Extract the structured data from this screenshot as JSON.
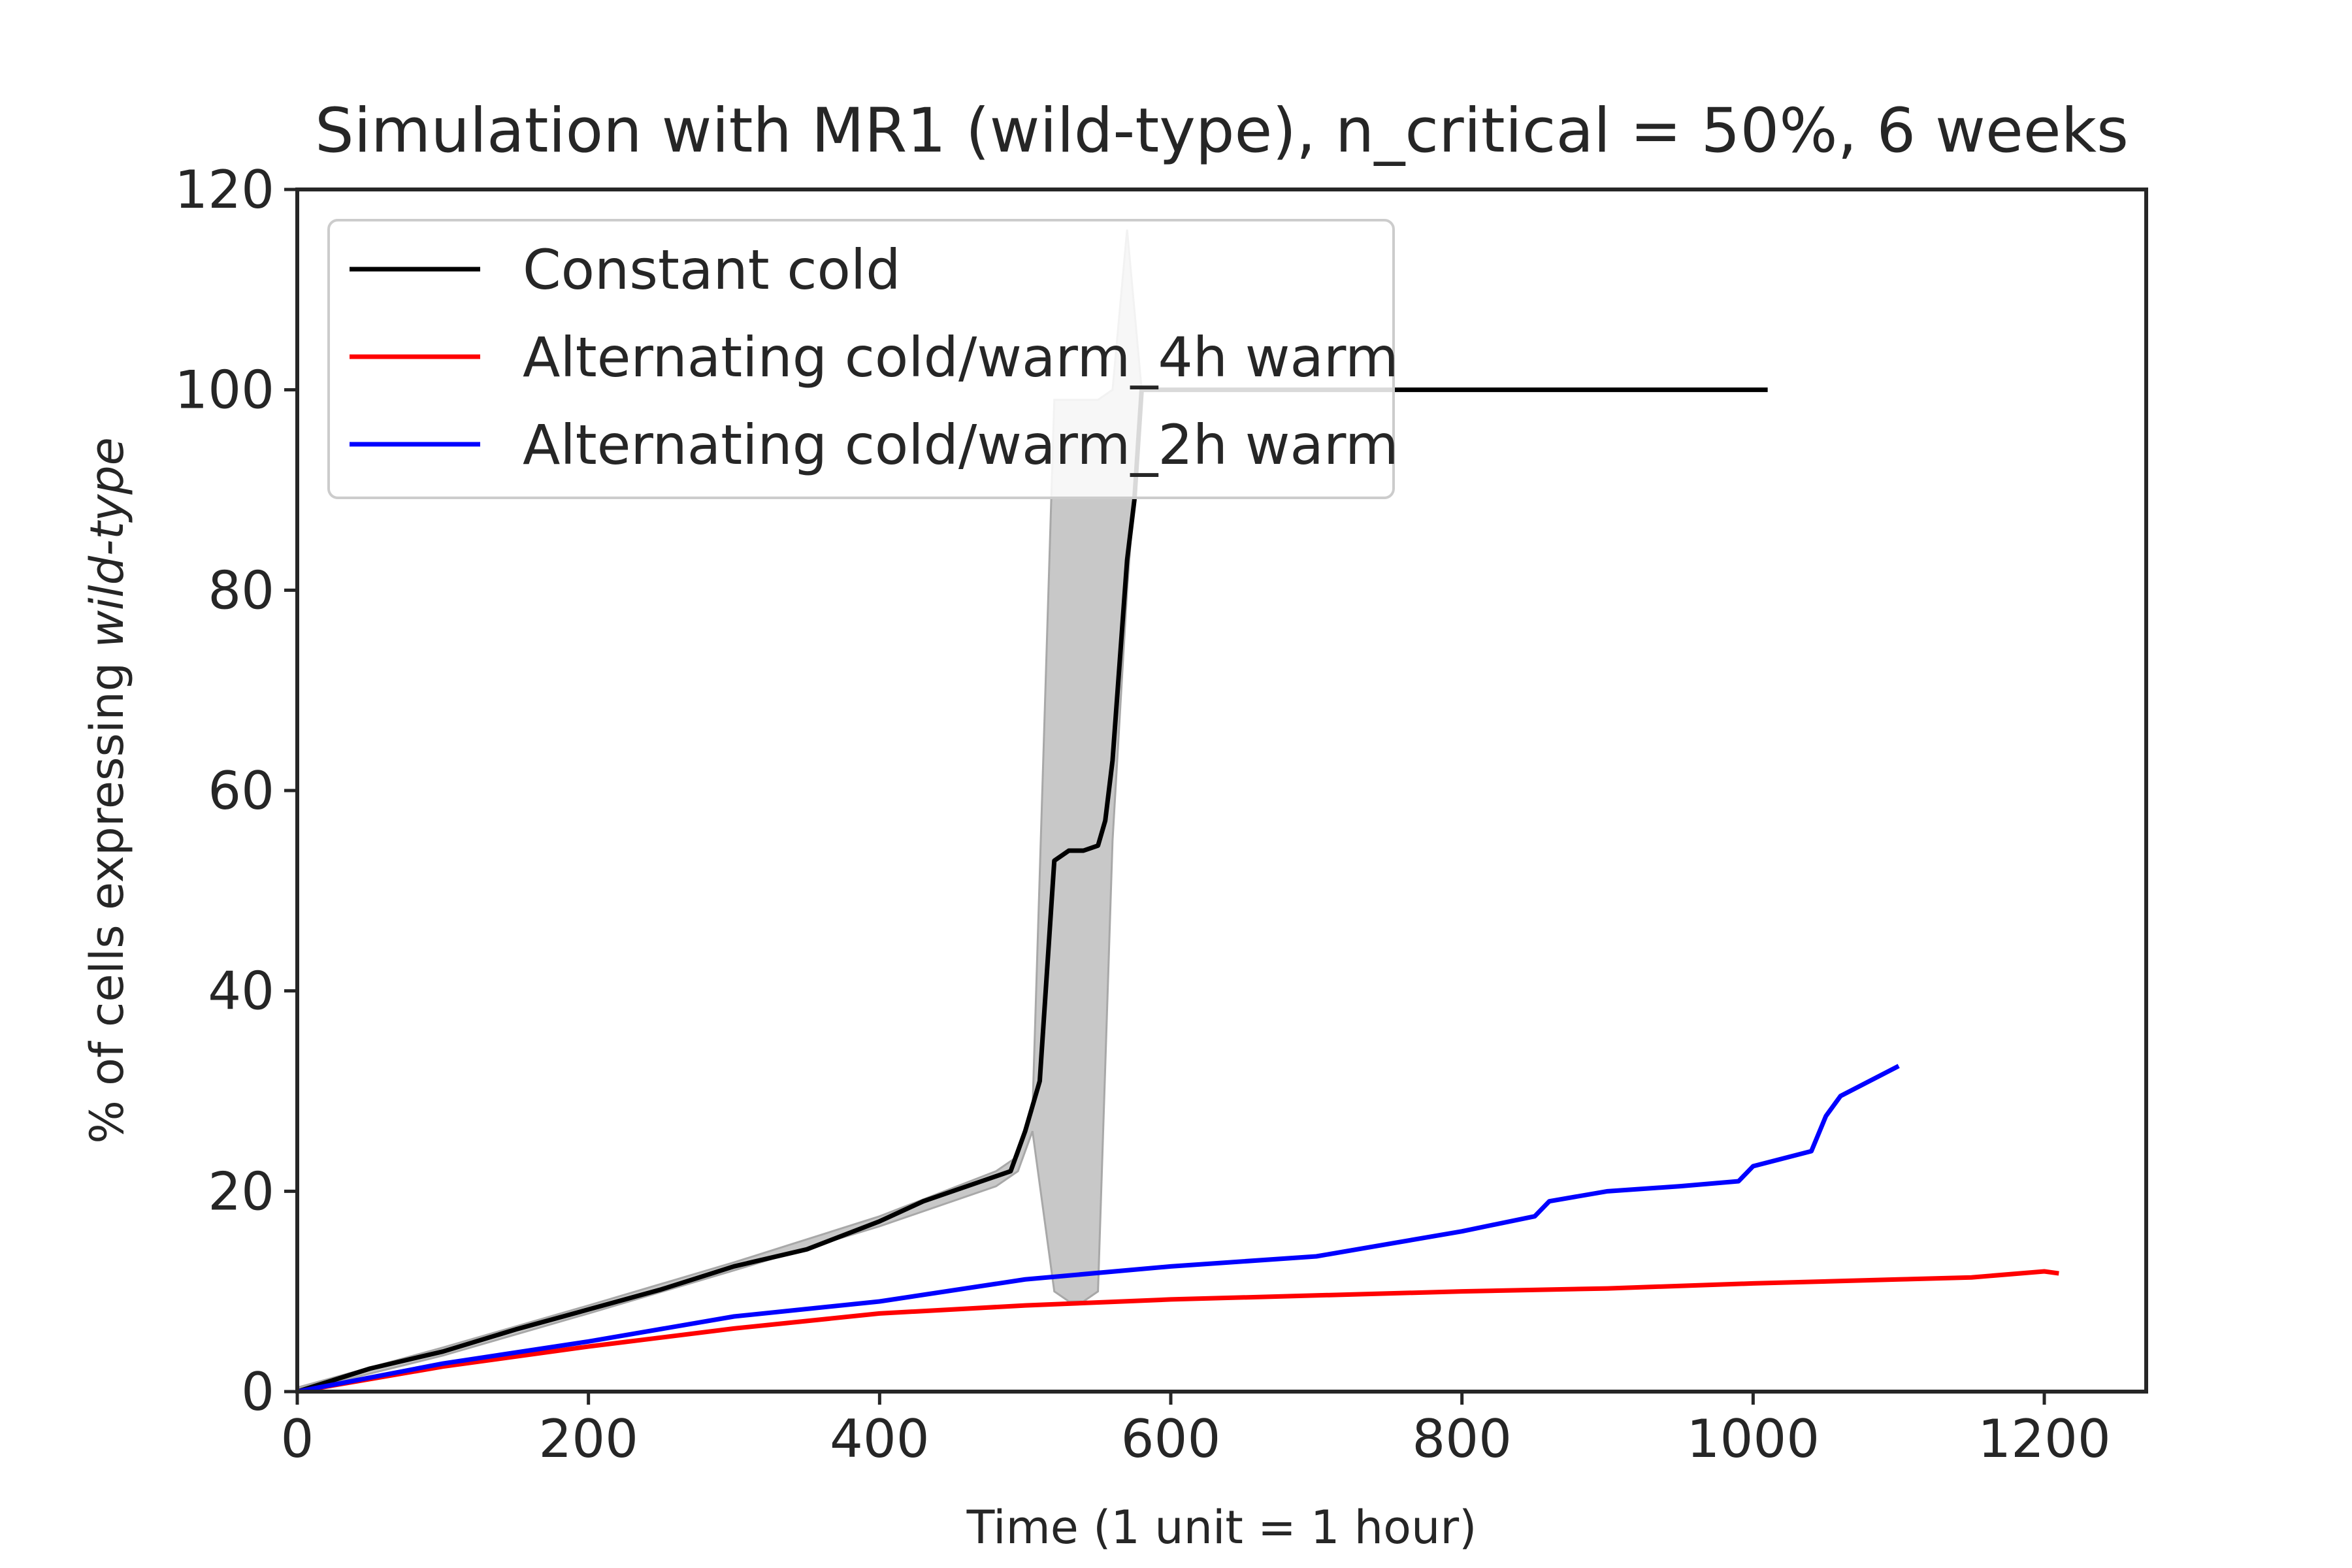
{
  "chart_data": {
    "type": "line",
    "title": "Simulation with MR1 (wild-type), n_critical = 50%, 6 weeks",
    "xlabel": "Time (1 unit = 1 hour)",
    "ylabel_prefix": "% of cells expressing ",
    "ylabel_italic": "wild-type",
    "xlim": [
      0,
      1270
    ],
    "ylim": [
      0,
      120
    ],
    "xticks": [
      0,
      200,
      400,
      600,
      800,
      1000,
      1200
    ],
    "yticks": [
      0,
      20,
      40,
      60,
      80,
      100,
      120
    ],
    "grid": false,
    "legend_position": "upper-left",
    "series": [
      {
        "name": "Constant cold",
        "color": "#000000",
        "x": [
          0,
          50,
          100,
          150,
          200,
          250,
          300,
          350,
          400,
          430,
          470,
          490,
          500,
          510,
          520,
          530,
          540,
          550,
          555,
          560,
          565,
          570,
          575,
          580,
          600,
          700,
          800,
          900,
          1010
        ],
        "y": [
          0,
          2.3,
          4,
          6.2,
          8.2,
          10.2,
          12.5,
          14.2,
          17,
          19,
          21,
          22,
          26,
          31,
          53,
          54,
          54,
          54.5,
          57,
          63,
          73,
          83,
          89,
          100,
          100,
          100,
          100,
          100,
          100
        ],
        "band_x": [
          0,
          100,
          200,
          300,
          400,
          480,
          495,
          505,
          520,
          530,
          540,
          550,
          560,
          570,
          580,
          600
        ],
        "band_lower": [
          0,
          3.6,
          7.8,
          12.1,
          16.5,
          20.5,
          22,
          26,
          10,
          9,
          9,
          10,
          55,
          80,
          100,
          100
        ],
        "band_upper": [
          0.4,
          4.4,
          8.6,
          12.9,
          17.5,
          22,
          23.5,
          28,
          99,
          99,
          99,
          99,
          100,
          116,
          100,
          100
        ]
      },
      {
        "name": "Alternating cold/warm_4h warm",
        "color": "#ff0000",
        "x": [
          0,
          100,
          200,
          300,
          400,
          500,
          600,
          700,
          800,
          900,
          1000,
          1100,
          1150,
          1200,
          1210
        ],
        "y": [
          0,
          2.5,
          4.5,
          6.3,
          7.8,
          8.6,
          9.2,
          9.6,
          10,
          10.3,
          10.8,
          11.2,
          11.4,
          12,
          11.8
        ]
      },
      {
        "name": "Alternating cold/warm_2h warm",
        "color": "#0000ff",
        "x": [
          0,
          100,
          200,
          300,
          400,
          500,
          600,
          700,
          800,
          850,
          860,
          900,
          950,
          990,
          1000,
          1040,
          1050,
          1060,
          1080,
          1100
        ],
        "y": [
          0,
          2.8,
          5,
          7.5,
          9,
          11.2,
          12.5,
          13.5,
          16,
          17.5,
          19,
          20,
          20.5,
          21,
          22.5,
          24,
          27.5,
          29.5,
          31,
          32.5
        ]
      }
    ]
  }
}
